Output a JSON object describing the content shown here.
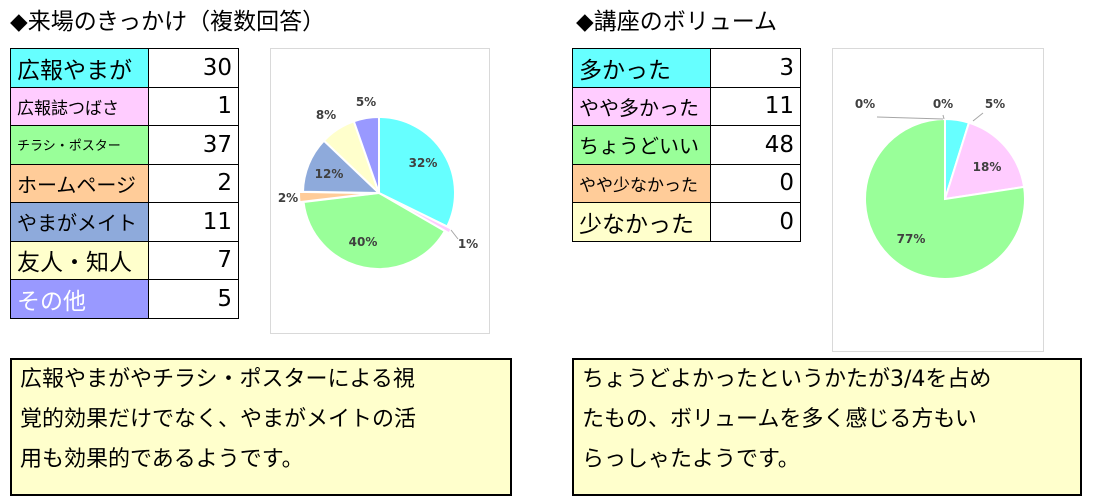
{
  "left": {
    "title": "◆来場のきっかけ（複数回答）",
    "rows": [
      {
        "label": "広報やまが",
        "value": "30",
        "color": "#66ffff"
      },
      {
        "label": "広報誌つばさ",
        "value": "1",
        "color": "#ffccff"
      },
      {
        "label": "チラシ・ポスター",
        "value": "37",
        "color": "#99ff99"
      },
      {
        "label": "ホームページ",
        "value": "2",
        "color": "#ffcc99"
      },
      {
        "label": "やまがメイト",
        "value": "11",
        "color": "#8eaadb"
      },
      {
        "label": "友人・知人",
        "value": "7",
        "color": "#ffffcc"
      },
      {
        "label": "その他",
        "value": "5",
        "color": "#9999ff"
      }
    ],
    "note_lines": [
      "広報やまがやチラシ・ポスターによる視",
      "覚的効果だけでなく、やまがメイトの活",
      "用も効果的であるようです。"
    ]
  },
  "right": {
    "title": "◆講座のボリューム",
    "rows": [
      {
        "label": "多かった",
        "value": "3",
        "color": "#66ffff"
      },
      {
        "label": "やや多かった",
        "value": "11",
        "color": "#ffccff"
      },
      {
        "label": "ちょうどいい",
        "value": "48",
        "color": "#99ff99"
      },
      {
        "label": "やや少なかった",
        "value": "0",
        "color": "#ffcc99"
      },
      {
        "label": "少なかった",
        "value": "0",
        "color": "#ffffcc"
      }
    ],
    "note_lines": [
      "ちょうどよかったというかたが3/4を占め",
      "たもの、ボリュームを多く感じる方もい",
      "らっしゃたようです。"
    ]
  },
  "chart_data": [
    {
      "type": "pie",
      "categories": [
        "広報やまが",
        "広報誌つばさ",
        "チラシ・ポスター",
        "ホームページ",
        "やまがメイト",
        "友人・知人",
        "その他"
      ],
      "values": [
        30,
        1,
        37,
        2,
        11,
        7,
        5
      ],
      "labels": [
        "32%",
        "1%",
        "40%",
        "2%",
        "12%",
        "8%",
        "5%"
      ],
      "colors": [
        "#66ffff",
        "#ffccff",
        "#99ff99",
        "#ffcc99",
        "#8eaadb",
        "#ffffcc",
        "#9999ff"
      ]
    },
    {
      "type": "pie",
      "categories": [
        "多かった",
        "やや多かった",
        "ちょうどいい",
        "やや少なかった",
        "少なかった"
      ],
      "values": [
        3,
        11,
        48,
        0,
        0
      ],
      "labels": [
        "5%",
        "18%",
        "77%",
        "0%",
        "0%"
      ],
      "colors": [
        "#66ffff",
        "#ffccff",
        "#99ff99",
        "#ffcc99",
        "#ffffcc"
      ]
    }
  ]
}
